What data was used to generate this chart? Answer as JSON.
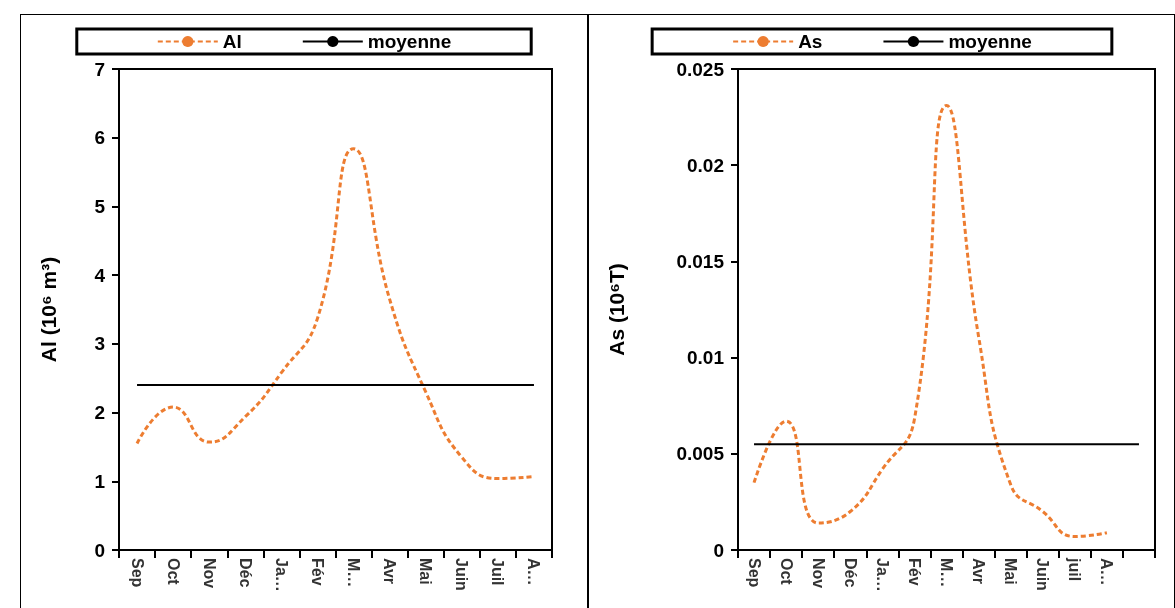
{
  "chart_data": [
    {
      "type": "line",
      "ylabel": "Al (10⁶ m³)",
      "categories": [
        "Sep",
        "Oct",
        "Nov",
        "Déc",
        "Ja…",
        "Fév",
        "M…",
        "Avr",
        "Mai",
        "Juin",
        "Juil",
        "A…"
      ],
      "series": [
        {
          "name": "Al",
          "color": "#ed7d31",
          "line_style": "dashed",
          "values": [
            1.55,
            2.08,
            1.57,
            1.94,
            2.58,
            3.37,
            5.84,
            3.65,
            2.3,
            1.35,
            1.04,
            1.07
          ]
        },
        {
          "name": "moyenne",
          "color": "#000000",
          "line_style": "solid",
          "values": [
            2.4,
            2.4,
            2.4,
            2.4,
            2.4,
            2.4,
            2.4,
            2.4,
            2.4,
            2.4,
            2.4,
            2.4
          ]
        }
      ],
      "ylim": [
        0,
        7
      ],
      "yticks": [
        0,
        1,
        2,
        3,
        4,
        5,
        6,
        7
      ],
      "grid": false,
      "legend": "top",
      "marker": "none"
    },
    {
      "type": "line",
      "ylabel": "As (10⁶T)",
      "categories": [
        "Sep",
        "Oct",
        "Nov",
        "Déc",
        "Ja…",
        "Fév",
        "M…",
        "Avr",
        "Mai",
        "Juin",
        "juil",
        "A…",
        null
      ],
      "series": [
        {
          "name": "As",
          "color": "#ed7d31",
          "line_style": "dashed",
          "values": [
            0.0035,
            0.0067,
            0.0014,
            0.002,
            0.0042,
            0.0068,
            0.0231,
            0.0111,
            0.0034,
            0.002,
            0.0007,
            0.0009,
            null
          ]
        },
        {
          "name": "moyenne",
          "color": "#000000",
          "line_style": "solid",
          "values": [
            0.0055,
            0.0055,
            0.0055,
            0.0055,
            0.0055,
            0.0055,
            0.0055,
            0.0055,
            0.0055,
            0.0055,
            0.0055,
            0.0055,
            0.0055
          ]
        }
      ],
      "ylim": [
        0,
        0.025
      ],
      "yticks": [
        0,
        0.005,
        0.01,
        0.015,
        0.02,
        0.025
      ],
      "grid": false,
      "legend": "top",
      "marker": "none"
    }
  ]
}
